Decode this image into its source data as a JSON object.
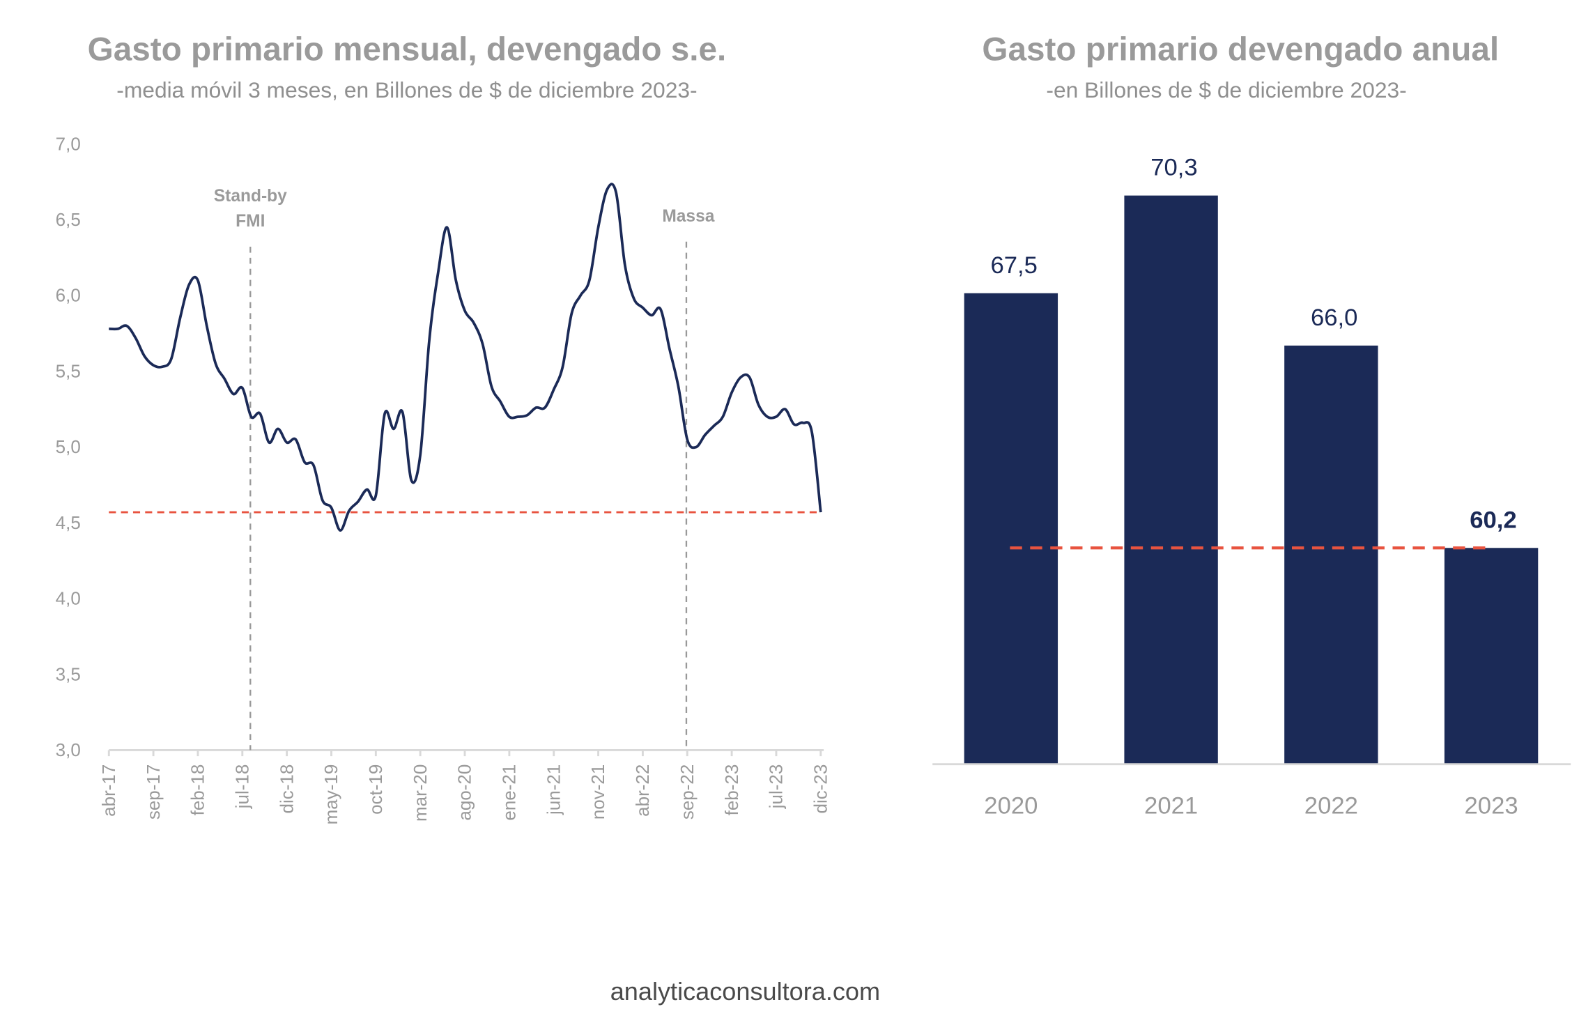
{
  "colors": {
    "line": "#1b2a57",
    "bar": "#1b2a57",
    "reference": "#e8533f",
    "marker": "#999999",
    "axis": "#d9d9d9"
  },
  "footer": "analyticaconsultora.com",
  "chart_data": [
    {
      "type": "line",
      "title": "Gasto primario mensual, devengado s.e.",
      "subtitle": "-media móvil 3 meses, en Billones de $ de diciembre 2023-",
      "ylim": [
        3.0,
        7.0
      ],
      "yticks": [
        "3,0",
        "3,5",
        "4,0",
        "4,5",
        "5,0",
        "5,5",
        "6,0",
        "6,5",
        "7,0"
      ],
      "ytick_values": [
        3.0,
        3.5,
        4.0,
        4.5,
        5.0,
        5.5,
        6.0,
        6.5,
        7.0
      ],
      "start_month": "abr-17",
      "xtick_labels": [
        "abr-17",
        "sep-17",
        "feb-18",
        "jul-18",
        "dic-18",
        "may-19",
        "oct-19",
        "mar-20",
        "ago-20",
        "ene-21",
        "jun-21",
        "nov-21",
        "abr-22",
        "sep-22",
        "feb-23",
        "jul-23",
        "dic-23"
      ],
      "xtick_step_months": 5,
      "values": [
        5.78,
        5.78,
        5.8,
        5.72,
        5.6,
        5.54,
        5.53,
        5.58,
        5.85,
        6.07,
        6.1,
        5.8,
        5.55,
        5.45,
        5.35,
        5.39,
        5.2,
        5.22,
        5.03,
        5.12,
        5.03,
        5.05,
        4.9,
        4.88,
        4.65,
        4.6,
        4.45,
        4.58,
        4.64,
        4.72,
        4.68,
        5.22,
        5.12,
        5.23,
        4.78,
        4.95,
        5.7,
        6.15,
        6.45,
        6.1,
        5.9,
        5.82,
        5.68,
        5.4,
        5.3,
        5.2,
        5.2,
        5.21,
        5.26,
        5.26,
        5.38,
        5.53,
        5.88,
        6.0,
        6.1,
        6.45,
        6.7,
        6.68,
        6.2,
        5.98,
        5.92,
        5.87,
        5.91,
        5.65,
        5.4,
        5.05,
        5.0,
        5.08,
        5.14,
        5.2,
        5.36,
        5.46,
        5.46,
        5.28,
        5.2,
        5.2,
        5.25,
        5.15,
        5.16,
        5.1,
        4.57
      ],
      "reference_line": 4.57,
      "annotations": [
        {
          "label_lines": [
            "Stand-by",
            "FMI"
          ],
          "month_index": 15.9
        },
        {
          "label_lines": [
            "Massa"
          ],
          "month_index": 64.9
        }
      ]
    },
    {
      "type": "bar",
      "title": "Gasto primario devengado anual",
      "subtitle": "-en Billones de $ de diciembre 2023-",
      "categories": [
        "2020",
        "2021",
        "2022",
        "2023"
      ],
      "values": [
        67.5,
        70.3,
        66.0,
        60.2
      ],
      "value_labels": [
        "67,5",
        "70,3",
        "66,0",
        "60,2"
      ],
      "ylim": [
        54,
        72
      ],
      "reference_line": 60.2
    }
  ]
}
